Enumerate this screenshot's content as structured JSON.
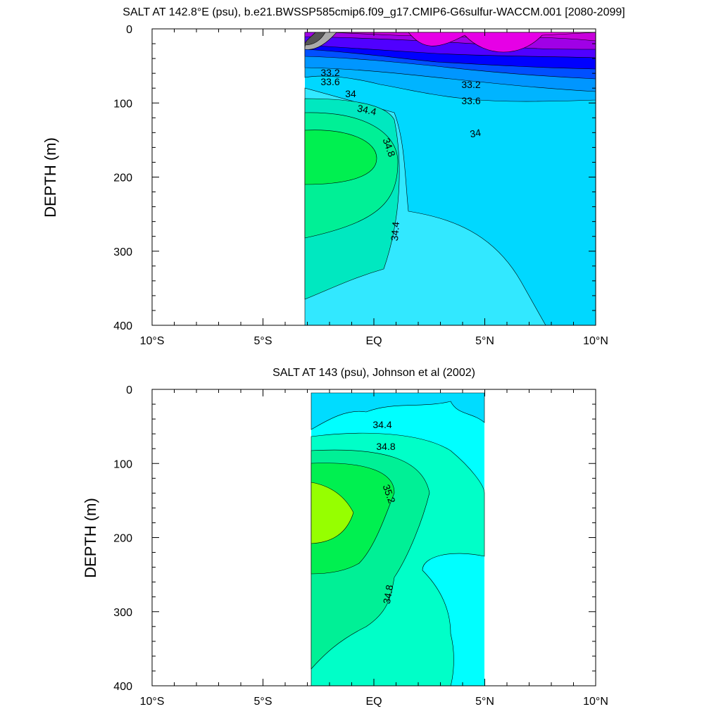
{
  "chart_data": [
    {
      "type": "contour",
      "title": "SALT AT 142.8°E (psu), b.e21.BWSSP585cmip6.f09_g17.CMIP6-G6sulfur-WACCM.001 [2080-2099]",
      "ylabel": "DEPTH (m)",
      "xlabel": "",
      "xlim": [
        -10,
        10
      ],
      "ylim": [
        400,
        0
      ],
      "x_ticks": [
        "10°S",
        "5°S",
        "EQ",
        "5°N",
        "10°N"
      ],
      "y_ticks": [
        "0",
        "100",
        "200",
        "300",
        "400"
      ],
      "data_extent": {
        "lat": [
          -3,
          10
        ],
        "depth": [
          3,
          400
        ]
      },
      "contour_labels": [
        {
          "text": "33.2",
          "lat": -1.9,
          "depth": 57
        },
        {
          "text": "33.6",
          "lat": -1.9,
          "depth": 70
        },
        {
          "text": "34",
          "lat": -1.0,
          "depth": 83
        },
        {
          "text": "34.4",
          "lat": -0.4,
          "depth": 105
        },
        {
          "text": "34.8",
          "lat": 0.5,
          "depth": 158
        },
        {
          "text": "34.4",
          "lat": 1.1,
          "depth": 268
        },
        {
          "text": "33.2",
          "lat": 4.3,
          "depth": 72
        },
        {
          "text": "33.6",
          "lat": 4.3,
          "depth": 92
        },
        {
          "text": "34",
          "lat": 4.6,
          "depth": 133
        }
      ],
      "colors": {
        "high": "#00f050",
        "mid": "#00e8c0",
        "low": "#32e8ff",
        "fresh": "#e600e6",
        "blue": "#0000ff"
      }
    },
    {
      "type": "contour",
      "title": "SALT AT 143 (psu), Johnson et al (2002)",
      "ylabel": "DEPTH (m)",
      "xlabel": "",
      "xlim": [
        -10,
        10
      ],
      "ylim": [
        400,
        0
      ],
      "x_ticks": [
        "10°S",
        "5°S",
        "EQ",
        "5°N",
        "10°N"
      ],
      "y_ticks": [
        "0",
        "100",
        "200",
        "300",
        "400"
      ],
      "data_extent": {
        "lat": [
          -2.8,
          5
        ],
        "depth": [
          5,
          400
        ]
      },
      "contour_labels": [
        {
          "text": "34.4",
          "lat": 0.4,
          "depth": 46
        },
        {
          "text": "34.8",
          "lat": 0.6,
          "depth": 74
        },
        {
          "text": "35.2",
          "lat": 0.5,
          "depth": 140
        },
        {
          "text": "34.8",
          "lat": 0.7,
          "depth": 272
        }
      ],
      "colors": {
        "max": "#96ff00",
        "high": "#00f050",
        "mid": "#00ffc8",
        "low": "#00ffff",
        "surface": "#00dcff"
      }
    }
  ]
}
